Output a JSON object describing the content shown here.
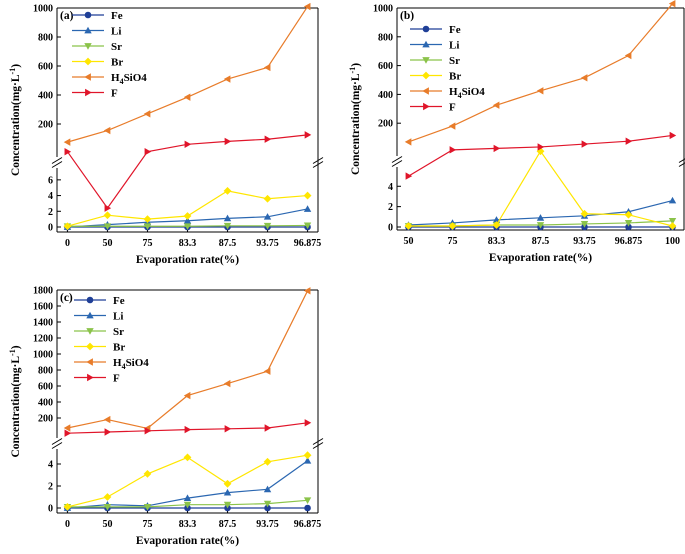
{
  "chart_data": [
    {
      "panel_label": "(a)",
      "type": "line",
      "xlabel": "Evaporation rate(%)",
      "ylabel": "Concentration(mg·L",
      "ylabel_sup": "-1",
      "ylabel_close": ")",
      "categories": [
        "0",
        "50",
        "75",
        "83.3",
        "87.5",
        "93.75",
        "96.875"
      ],
      "upper_ylim": [
        0,
        1000
      ],
      "upper_ticks": [
        200,
        400,
        600,
        800,
        1000
      ],
      "lower_ylim": [
        0,
        7
      ],
      "lower_ticks": [
        0,
        2,
        4,
        6
      ],
      "series": [
        {
          "name": "Fe",
          "sub": "",
          "color": "#1f3f97",
          "marker": "circle",
          "values": [
            0,
            0,
            0,
            0,
            0,
            0,
            0
          ]
        },
        {
          "name": "Li",
          "sub": "",
          "color": "#2b67b1",
          "marker": "triangle-up",
          "values": [
            0,
            0.3,
            0.6,
            0.8,
            1.1,
            1.3,
            2.3
          ]
        },
        {
          "name": "Sr",
          "sub": "",
          "color": "#8bc34a",
          "marker": "triangle-down",
          "values": [
            0.1,
            0.1,
            0.1,
            0.1,
            0.15,
            0.15,
            0.2
          ]
        },
        {
          "name": "Br",
          "sub": "",
          "color": "#ffe600",
          "marker": "diamond",
          "values": [
            0.1,
            1.5,
            1.0,
            1.4,
            4.6,
            3.6,
            4.0
          ]
        },
        {
          "name": "H4SiO4",
          "sub": "4",
          "color": "#e87c2a",
          "marker": "triangle-left",
          "values": [
            75,
            155,
            270,
            385,
            510,
            590,
            1010
          ]
        },
        {
          "name": "F",
          "sub": "",
          "color": "#e0152a",
          "marker": "triangle-right",
          "values": [
            9,
            2.4,
            9,
            60,
            80,
            95,
            125
          ]
        }
      ]
    },
    {
      "panel_label": "(b)",
      "type": "line",
      "xlabel": "Evaporation rate(%)",
      "ylabel": "Concentration(mg·L",
      "ylabel_sup": "-1",
      "ylabel_close": ")",
      "categories": [
        "50",
        "75",
        "83.3",
        "87.5",
        "93.75",
        "96.875",
        "100"
      ],
      "upper_ylim": [
        0,
        1000
      ],
      "upper_ticks": [
        200,
        400,
        600,
        800,
        1000
      ],
      "lower_ylim": [
        0,
        5.5
      ],
      "lower_ticks": [
        0,
        2,
        4
      ],
      "series": [
        {
          "name": "Fe",
          "sub": "",
          "color": "#1f3f97",
          "marker": "circle",
          "values": [
            0,
            0,
            0,
            0,
            0,
            0,
            0
          ]
        },
        {
          "name": "Li",
          "sub": "",
          "color": "#2b67b1",
          "marker": "triangle-up",
          "values": [
            0.2,
            0.4,
            0.7,
            0.9,
            1.1,
            1.5,
            2.6
          ]
        },
        {
          "name": "Sr",
          "sub": "",
          "color": "#8bc34a",
          "marker": "triangle-down",
          "values": [
            0.1,
            0.1,
            0.2,
            0.2,
            0.3,
            0.4,
            0.6
          ]
        },
        {
          "name": "Br",
          "sub": "",
          "color": "#ffe600",
          "marker": "diamond",
          "values": [
            0.1,
            0.1,
            0.2,
            5.6,
            1.3,
            1.2,
            0.1
          ]
        },
        {
          "name": "H4SiO4",
          "sub": "4",
          "color": "#e87c2a",
          "marker": "triangle-left",
          "values": [
            70,
            180,
            325,
            425,
            515,
            670,
            1030
          ]
        },
        {
          "name": "F",
          "sub": "",
          "color": "#e0152a",
          "marker": "triangle-right",
          "values": [
            5,
            15,
            25,
            35,
            55,
            75,
            115
          ]
        }
      ]
    },
    {
      "panel_label": "(c)",
      "type": "line",
      "xlabel": "Evaporation rate(%)",
      "ylabel": "Concentration(mg·L",
      "ylabel_sup": "-1",
      "ylabel_close": ")",
      "categories": [
        "0",
        "50",
        "75",
        "83.3",
        "87.5",
        "93.75",
        "96.875"
      ],
      "upper_ylim": [
        0,
        1800
      ],
      "upper_ticks": [
        200,
        400,
        600,
        800,
        1000,
        1200,
        1400,
        1600,
        1800
      ],
      "lower_ylim": [
        0,
        5
      ],
      "lower_ticks": [
        0,
        2,
        4
      ],
      "series": [
        {
          "name": "Fe",
          "sub": "",
          "color": "#1f3f97",
          "marker": "circle",
          "values": [
            0,
            0,
            0,
            0,
            0,
            0,
            0
          ]
        },
        {
          "name": "Li",
          "sub": "",
          "color": "#2b67b1",
          "marker": "triangle-up",
          "values": [
            0,
            0.3,
            0.2,
            0.9,
            1.4,
            1.7,
            4.3
          ]
        },
        {
          "name": "Sr",
          "sub": "",
          "color": "#8bc34a",
          "marker": "triangle-down",
          "values": [
            0.1,
            0.1,
            0.1,
            0.3,
            0.3,
            0.4,
            0.7
          ]
        },
        {
          "name": "Br",
          "sub": "",
          "color": "#ffe600",
          "marker": "diamond",
          "values": [
            0.1,
            1.0,
            3.1,
            4.6,
            2.2,
            4.2,
            4.8
          ]
        },
        {
          "name": "H4SiO4",
          "sub": "4",
          "color": "#e87c2a",
          "marker": "triangle-left",
          "values": [
            75,
            180,
            70,
            480,
            630,
            785,
            1790
          ]
        },
        {
          "name": "F",
          "sub": "",
          "color": "#e0152a",
          "marker": "triangle-right",
          "values": [
            10,
            25,
            40,
            55,
            65,
            75,
            140
          ]
        }
      ]
    }
  ]
}
